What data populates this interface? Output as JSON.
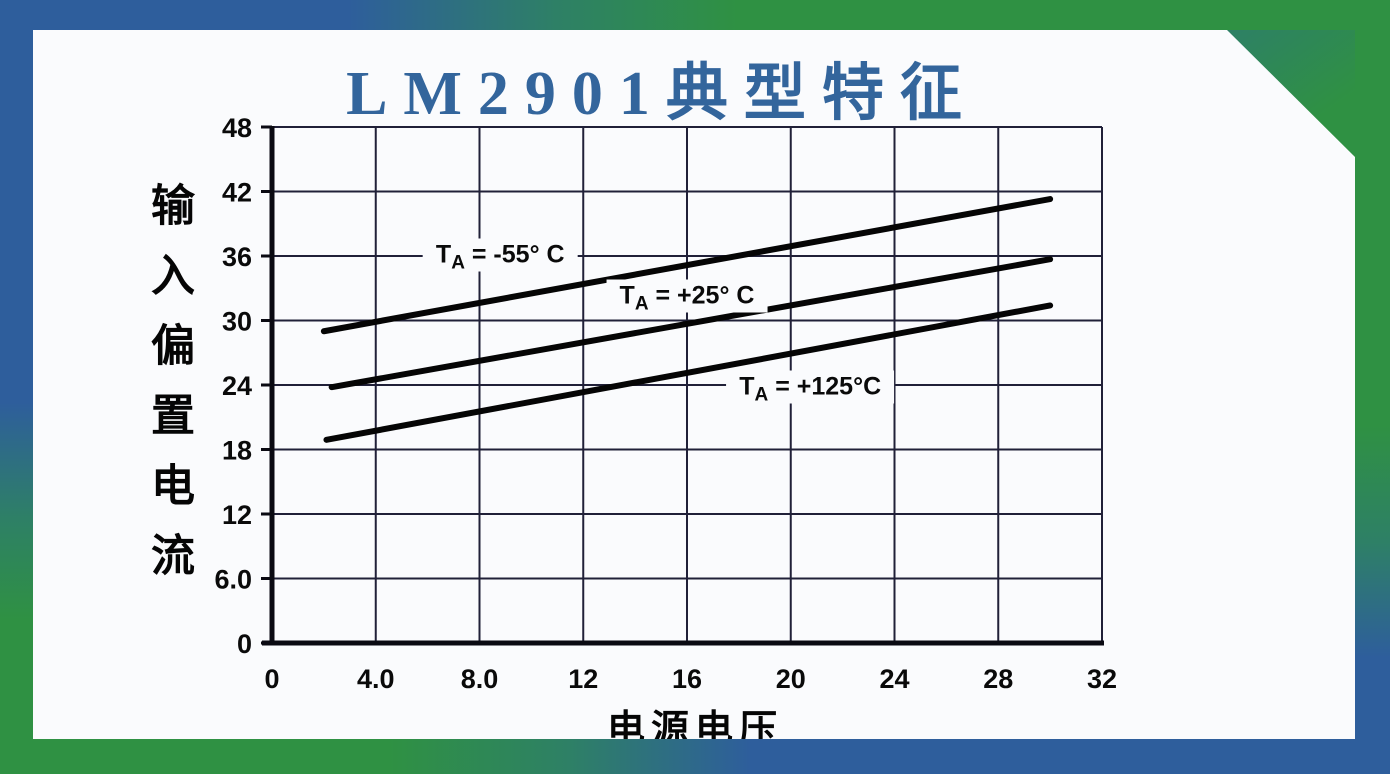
{
  "frame": {
    "blue": "#2e5e9c",
    "green": "#2f9143",
    "teal": "#2e8066"
  },
  "title": {
    "text": "LM2901典型特征",
    "color": "#33659c"
  },
  "chart_data": {
    "type": "line",
    "title": "LM2901典型特征",
    "xlabel": "电源电压",
    "ylabel": "输入偏置电流",
    "xlim": [
      0,
      32
    ],
    "ylim": [
      0,
      48
    ],
    "x_tick_labels": [
      "0",
      "4.0",
      "8.0",
      "12",
      "16",
      "20",
      "24",
      "28",
      "32"
    ],
    "x_tick_values": [
      0,
      4,
      8,
      12,
      16,
      20,
      24,
      28,
      32
    ],
    "y_tick_labels": [
      "0",
      "6.0",
      "12",
      "18",
      "24",
      "30",
      "36",
      "42",
      "48"
    ],
    "y_tick_values": [
      0,
      6,
      12,
      18,
      24,
      30,
      36,
      42,
      48
    ],
    "grid": true,
    "legend_position": "inline-labels",
    "line_color": "#050505",
    "series": [
      {
        "label_prefix": "T",
        "label_sub": "A",
        "label_rest": " = -55° C",
        "points": [
          [
            2.0,
            29.0
          ],
          [
            30.0,
            41.3
          ]
        ],
        "label_anchor": [
          8.8,
          36.1
        ]
      },
      {
        "label_prefix": "T",
        "label_sub": "A",
        "label_rest": " = +25° C",
        "points": [
          [
            2.3,
            23.8
          ],
          [
            30.0,
            35.7
          ]
        ],
        "label_anchor": [
          16.0,
          32.3
        ]
      },
      {
        "label_prefix": "T",
        "label_sub": "A",
        "label_rest": " = +125°C",
        "points": [
          [
            2.1,
            18.9
          ],
          [
            30.0,
            31.4
          ]
        ],
        "label_anchor": [
          20.75,
          23.85
        ]
      }
    ]
  }
}
